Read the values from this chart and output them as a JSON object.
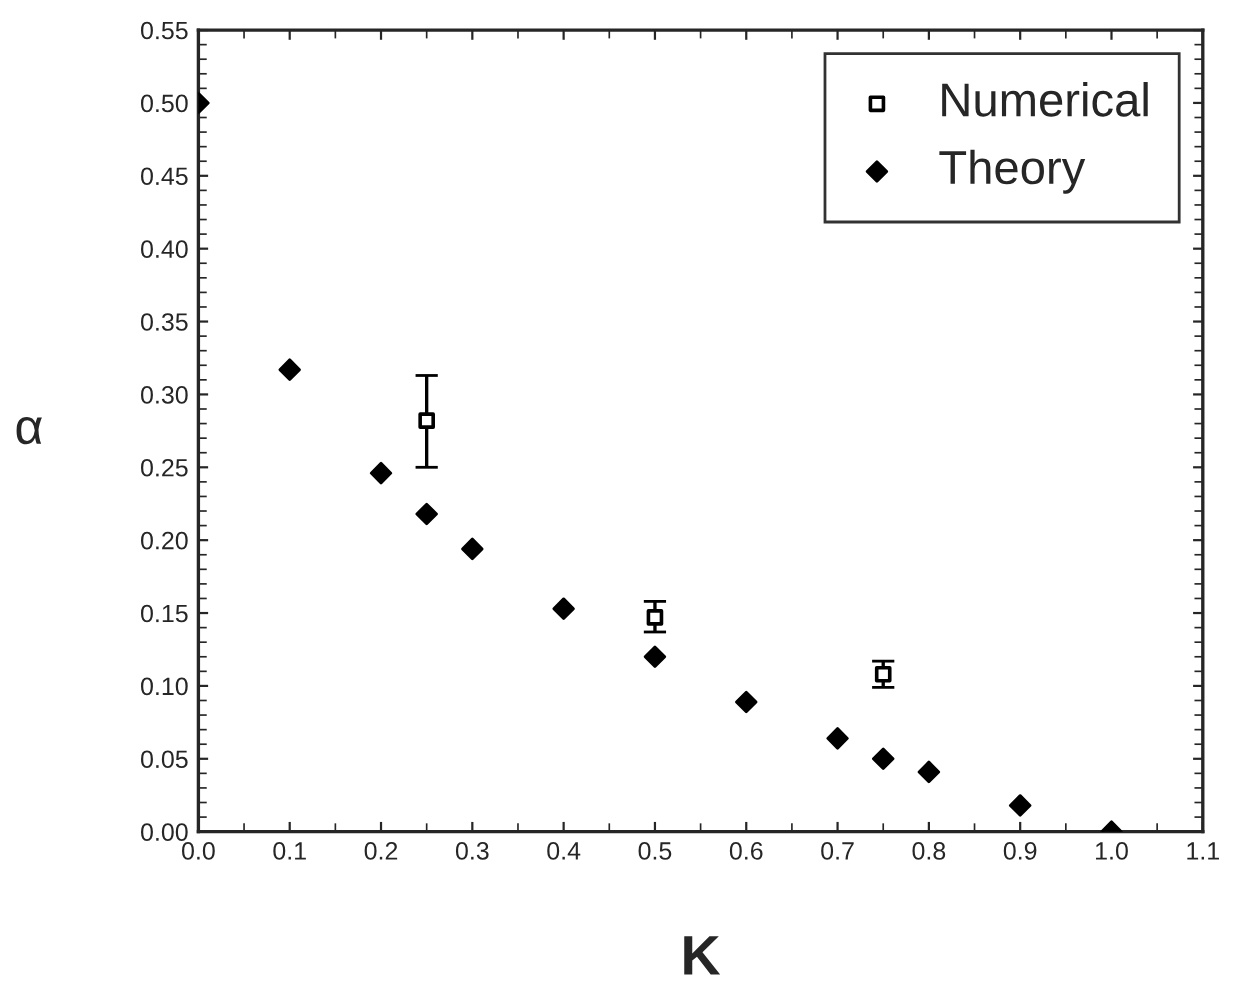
{
  "chart_data": {
    "type": "scatter",
    "xlabel": "K",
    "ylabel": "α",
    "xlim": [
      0,
      1.1
    ],
    "ylim": [
      0,
      0.55
    ],
    "xticks": [
      {
        "value": 0,
        "label": "0.0"
      },
      0.1,
      0.2,
      0.3,
      0.4,
      0.5,
      0.6,
      0.7,
      0.8,
      0.9,
      {
        "value": 1,
        "label": "1.0"
      },
      1.1
    ],
    "yticks": [
      {
        "value": 0,
        "label": "0.00"
      },
      0.05,
      {
        "value": 0.1,
        "label": "0.10"
      },
      0.15,
      {
        "value": 0.2,
        "label": "0.20"
      },
      0.25,
      {
        "value": 0.3,
        "label": "0.30"
      },
      0.35,
      {
        "value": 0.4,
        "label": "0.40"
      },
      0.45,
      {
        "value": 0.5,
        "label": "0.50"
      },
      0.55
    ],
    "grid": false,
    "legend": "top right",
    "series": [
      {
        "name": "Numerical",
        "color": "#000000",
        "marker": "square",
        "x": [
          0.25,
          0.5,
          0.75
        ],
        "values": [
          0.282,
          0.147,
          0.108
        ],
        "errors": [
          [
            0.25,
            0.313
          ],
          [
            0.137,
            0.158
          ],
          [
            0.099,
            0.117
          ]
        ]
      },
      {
        "name": "Theory",
        "color": "#000000",
        "marker": "diamond",
        "x": [
          0,
          0.1,
          0.2,
          0.25,
          0.3,
          0.4,
          0.5,
          0.6,
          0.7,
          0.75,
          0.8,
          0.9,
          1.0
        ],
        "values": [
          0.5,
          0.317,
          0.246,
          0.218,
          0.194,
          0.153,
          0.12,
          0.089,
          0.064,
          0.05,
          0.041,
          0.018,
          0.0
        ]
      }
    ]
  }
}
